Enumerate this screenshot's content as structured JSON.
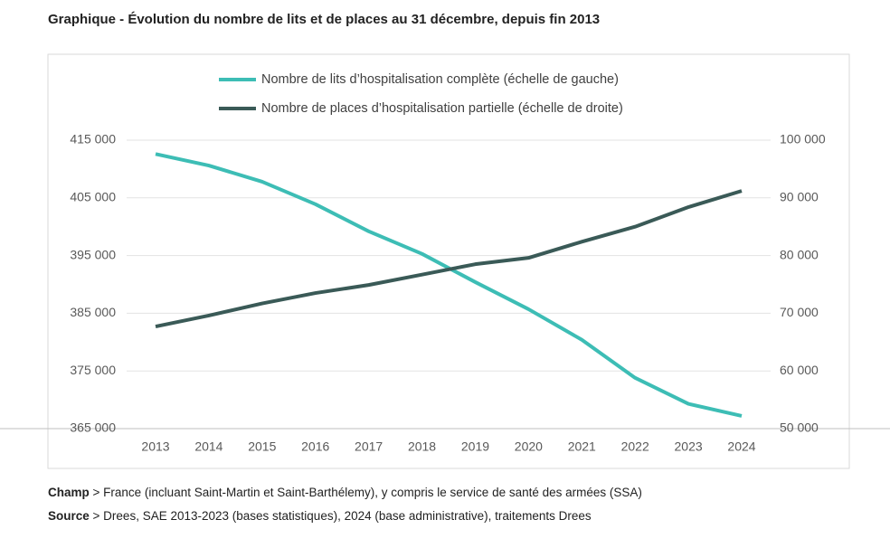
{
  "chart_data": {
    "type": "line",
    "title": "Graphique - Évolution du nombre de lits et de places au 31 décembre, depuis fin 2013",
    "categories": [
      "2013",
      "2014",
      "2015",
      "2016",
      "2017",
      "2018",
      "2019",
      "2020",
      "2021",
      "2022",
      "2023",
      "2024"
    ],
    "series": [
      {
        "name": "Nombre de lits d’hospitalisation complète (échelle de gauche)",
        "color": "#3dbdb5",
        "axis": "y",
        "values": [
          412600,
          410600,
          407800,
          403900,
          399200,
          395300,
          390400,
          385700,
          380400,
          373800,
          369300,
          367200
        ]
      },
      {
        "name": "Nombre de places d’hospitalisation partielle (échelle de droite)",
        "color": "#3a5a57",
        "axis": "y2",
        "values": [
          67700,
          69600,
          71700,
          73500,
          74900,
          76700,
          78500,
          79600,
          82400,
          85000,
          88400,
          91200
        ]
      }
    ],
    "ylim": [
      365000,
      415000
    ],
    "yticks": [
      {
        "value": 365000,
        "label": "365 000"
      },
      {
        "value": 375000,
        "label": "375 000"
      },
      {
        "value": 385000,
        "label": "385 000"
      },
      {
        "value": 395000,
        "label": "395 000"
      },
      {
        "value": 405000,
        "label": "405 000"
      },
      {
        "value": 415000,
        "label": "415 000"
      }
    ],
    "y2lim": [
      50000,
      100000
    ],
    "y2ticks": [
      {
        "value": 50000,
        "label": "50 000"
      },
      {
        "value": 60000,
        "label": "60 000"
      },
      {
        "value": 70000,
        "label": "70 000"
      },
      {
        "value": 80000,
        "label": "80 000"
      },
      {
        "value": 90000,
        "label": "90 000"
      },
      {
        "value": 100000,
        "label": "100 000"
      }
    ],
    "grid": true,
    "legend": "top",
    "notes": [
      {
        "label": "Champ",
        "text": "> France (incluant Saint-Martin et Saint-Barthélemy), y compris le service de santé des armées (SSA)"
      },
      {
        "label": "Source",
        "text": "> Drees, SAE 2013-2023 (bases statistiques), 2024 (base administrative), traitements Drees"
      }
    ]
  }
}
